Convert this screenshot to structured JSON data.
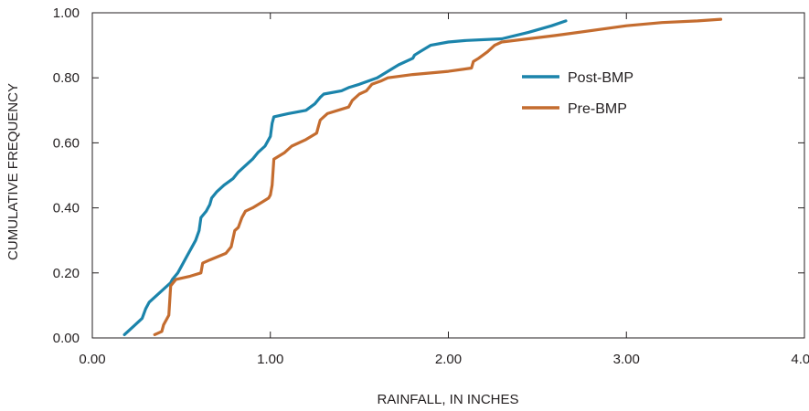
{
  "chart_data": {
    "type": "line",
    "title": "",
    "xlabel": "RAINFALL, IN INCHES",
    "ylabel": "CUMULATIVE FREQUENCY",
    "xlim": [
      0,
      4
    ],
    "ylim": [
      0,
      1
    ],
    "x_ticks": [
      0,
      1,
      2,
      3,
      4
    ],
    "x_tick_labels": [
      "0.00",
      "1.00",
      "2.00",
      "3.00",
      "4.00"
    ],
    "y_ticks": [
      0,
      0.2,
      0.4,
      0.6,
      0.8,
      1.0
    ],
    "y_tick_labels": [
      "0.00",
      "0.20",
      "0.40",
      "0.60",
      "0.80",
      "1.00"
    ],
    "grid": false,
    "legend_position": "top-right",
    "series": [
      {
        "name": "Post-BMP",
        "color": "#1b84ab",
        "x": [
          0.18,
          0.24,
          0.28,
          0.3,
          0.32,
          0.38,
          0.44,
          0.45,
          0.48,
          0.5,
          0.53,
          0.56,
          0.58,
          0.6,
          0.61,
          0.64,
          0.66,
          0.67,
          0.7,
          0.74,
          0.79,
          0.82,
          0.86,
          0.9,
          0.93,
          0.97,
          1.0,
          1.01,
          1.02,
          1.1,
          1.2,
          1.25,
          1.28,
          1.3,
          1.4,
          1.44,
          1.5,
          1.6,
          1.66,
          1.72,
          1.8,
          1.81,
          1.84,
          1.9,
          2.0,
          2.1,
          2.3,
          2.45,
          2.58,
          2.66
        ],
        "y": [
          0.01,
          0.04,
          0.06,
          0.09,
          0.11,
          0.14,
          0.17,
          0.18,
          0.2,
          0.22,
          0.25,
          0.28,
          0.3,
          0.33,
          0.37,
          0.39,
          0.41,
          0.43,
          0.45,
          0.47,
          0.49,
          0.51,
          0.53,
          0.55,
          0.57,
          0.59,
          0.62,
          0.66,
          0.68,
          0.69,
          0.7,
          0.72,
          0.74,
          0.75,
          0.76,
          0.77,
          0.78,
          0.8,
          0.82,
          0.84,
          0.86,
          0.87,
          0.88,
          0.9,
          0.91,
          0.915,
          0.92,
          0.94,
          0.96,
          0.975
        ]
      },
      {
        "name": "Pre-BMP",
        "color": "#c46c2f",
        "x": [
          0.35,
          0.39,
          0.4,
          0.42,
          0.43,
          0.44,
          0.47,
          0.55,
          0.61,
          0.62,
          0.66,
          0.75,
          0.78,
          0.8,
          0.82,
          0.84,
          0.86,
          0.9,
          0.96,
          0.99,
          1.0,
          1.01,
          1.02,
          1.08,
          1.12,
          1.2,
          1.26,
          1.27,
          1.28,
          1.32,
          1.44,
          1.46,
          1.5,
          1.54,
          1.57,
          1.62,
          1.66,
          1.8,
          2.0,
          2.13,
          2.14,
          2.17,
          2.22,
          2.26,
          2.3,
          2.6,
          3.0,
          3.2,
          3.4,
          3.53
        ],
        "y": [
          0.01,
          0.02,
          0.04,
          0.06,
          0.07,
          0.16,
          0.18,
          0.19,
          0.2,
          0.23,
          0.24,
          0.26,
          0.28,
          0.33,
          0.34,
          0.37,
          0.39,
          0.4,
          0.42,
          0.43,
          0.44,
          0.47,
          0.55,
          0.57,
          0.59,
          0.61,
          0.63,
          0.65,
          0.67,
          0.69,
          0.71,
          0.73,
          0.75,
          0.76,
          0.78,
          0.79,
          0.8,
          0.81,
          0.82,
          0.83,
          0.85,
          0.86,
          0.88,
          0.9,
          0.91,
          0.93,
          0.96,
          0.97,
          0.975,
          0.98
        ]
      }
    ]
  }
}
